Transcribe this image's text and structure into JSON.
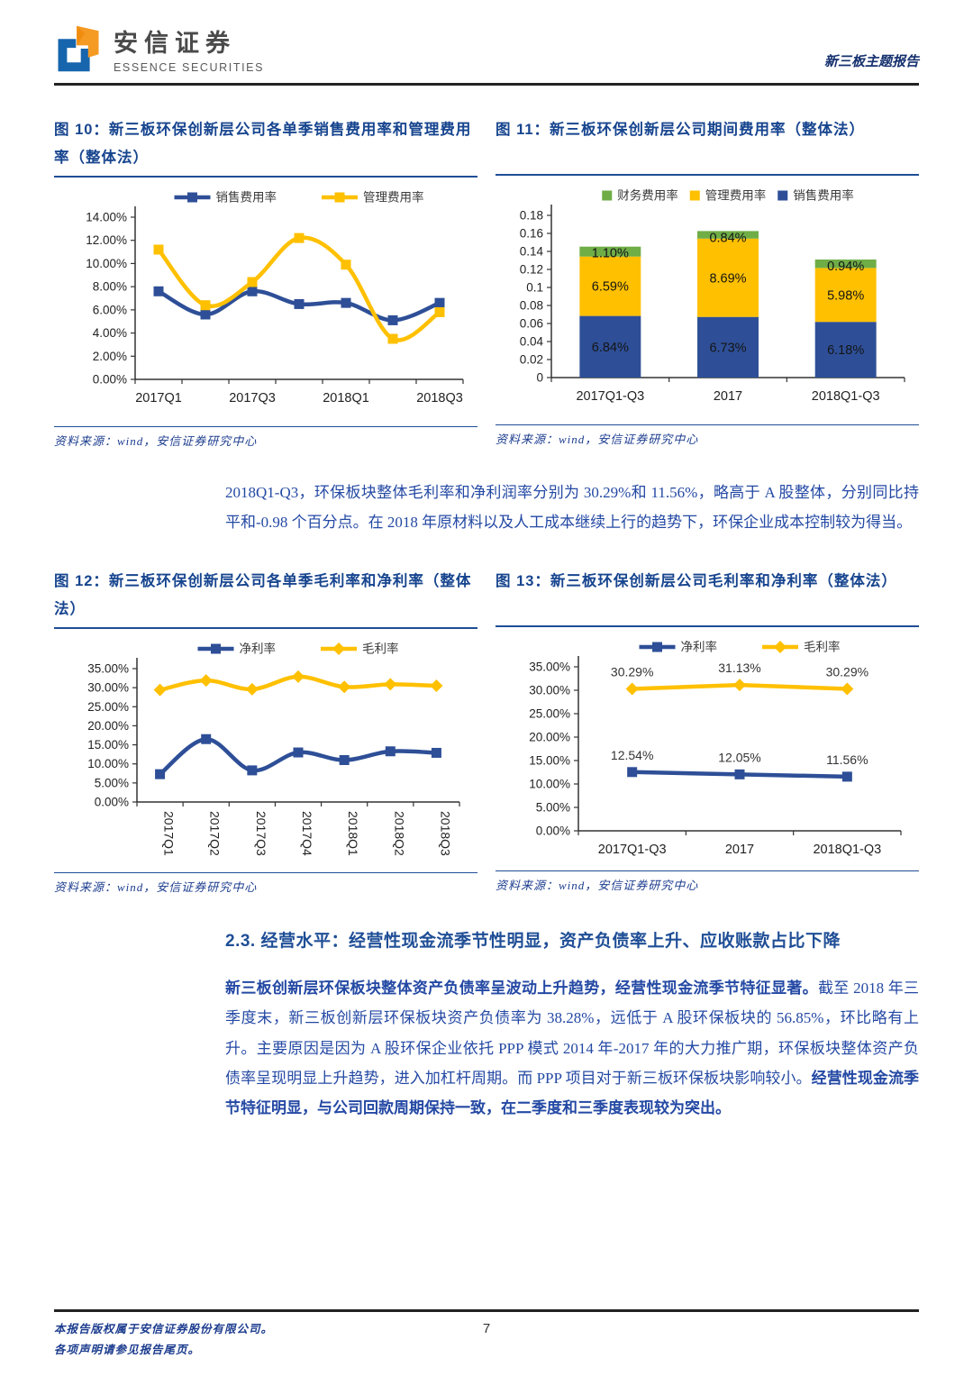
{
  "header": {
    "brand_cn": "安信证券",
    "brand_en": "ESSENCE SECURITIES",
    "report_type": "新三板主题报告"
  },
  "figures": [
    {
      "title": "图 10：新三板环保创新层公司各单季销售费用率和管理费用率（整体法）",
      "source": "资料来源：wind，安信证券研究中心",
      "chart_data": {
        "type": "line",
        "categories": [
          "2017Q1",
          "2017Q2",
          "2017Q3",
          "2017Q4",
          "2018Q1",
          "2018Q2",
          "2018Q3"
        ],
        "xtick_indices": [
          0,
          2,
          4,
          6
        ],
        "series": [
          {
            "name": "销售费用率",
            "color": "#2e4f97",
            "marker": "square",
            "values": [
              7.6,
              5.6,
              7.6,
              6.5,
              6.6,
              5.1,
              6.6
            ]
          },
          {
            "name": "管理费用率",
            "color": "#ffc000",
            "marker": "square",
            "values": [
              11.2,
              6.4,
              8.4,
              12.2,
              9.9,
              3.5,
              5.8
            ]
          }
        ],
        "ylim": [
          0,
          14
        ],
        "ystep": 2,
        "ytick_format": "percent2",
        "smooth": true,
        "legend_style": "line",
        "grid": false,
        "legend_position": "top"
      }
    },
    {
      "title": "图 11：新三板环保创新层公司期间费用率（整体法）",
      "source": "资料来源：wind，安信证券研究中心",
      "chart_data": {
        "type": "stacked-bar",
        "categories": [
          "2017Q1-Q3",
          "2017",
          "2018Q1-Q3"
        ],
        "series": [
          {
            "name": "销售费用率",
            "color": "#2e4f97",
            "values": [
              0.0684,
              0.0673,
              0.0618
            ],
            "labels": [
              "6.84%",
              "6.73%",
              "6.18%"
            ]
          },
          {
            "name": "管理费用率",
            "color": "#ffc000",
            "values": [
              0.0659,
              0.0869,
              0.0598
            ],
            "labels": [
              "6.59%",
              "8.69%",
              "5.98%"
            ]
          },
          {
            "name": "财务费用率",
            "color": "#6fad47",
            "values": [
              0.011,
              0.0084,
              0.0094
            ],
            "labels": [
              "1.10%",
              "0.84%",
              "0.94%"
            ]
          }
        ],
        "legend_order": [
          2,
          1,
          0
        ],
        "ylim": [
          0,
          0.18
        ],
        "ystep": 0.02,
        "ytick_format": "number",
        "legend_style": "square",
        "grid": false,
        "legend_position": "top"
      }
    },
    {
      "title": "图 12：新三板环保创新层公司各单季毛利率和净利率（整体法）",
      "source": "资料来源：wind，安信证券研究中心",
      "chart_data": {
        "type": "line",
        "categories": [
          "2017Q1",
          "2017Q2",
          "2017Q3",
          "2017Q4",
          "2018Q1",
          "2018Q2",
          "2018Q3"
        ],
        "rotate_xlabels": true,
        "series": [
          {
            "name": "净利率",
            "color": "#2e4f97",
            "marker": "square",
            "values": [
              7.3,
              16.5,
              8.3,
              13.0,
              11.0,
              13.3,
              12.9
            ]
          },
          {
            "name": "毛利率",
            "color": "#ffc000",
            "marker": "diamond",
            "values": [
              29.4,
              31.9,
              29.6,
              32.9,
              30.2,
              30.9,
              30.5
            ]
          }
        ],
        "ylim": [
          0,
          35
        ],
        "ystep": 5,
        "ytick_format": "percent2",
        "smooth": true,
        "legend_style": "line",
        "grid": false,
        "legend_position": "top"
      }
    },
    {
      "title": "图 13：新三板环保创新层公司毛利率和净利率（整体法）",
      "source": "资料来源：wind，安信证券研究中心",
      "chart_data": {
        "type": "line",
        "categories": [
          "2017Q1-Q3",
          "2017",
          "2018Q1-Q3"
        ],
        "series": [
          {
            "name": "净利率",
            "color": "#2e4f97",
            "marker": "square",
            "values": [
              12.54,
              12.05,
              11.56
            ],
            "labels": [
              "12.54%",
              "12.05%",
              "11.56%"
            ]
          },
          {
            "name": "毛利率",
            "color": "#ffc000",
            "marker": "diamond",
            "values": [
              30.29,
              31.13,
              30.29
            ],
            "labels": [
              "30.29%",
              "31.13%",
              "30.29%"
            ]
          }
        ],
        "ylim": [
          0,
          35
        ],
        "ystep": 5,
        "ytick_format": "percent2",
        "smooth": false,
        "legend_style": "line",
        "grid": false,
        "legend_position": "top"
      }
    }
  ],
  "paragraphs": {
    "p1": "2018Q1-Q3，环保板块整体毛利率和净利润率分别为 30.29%和 11.56%，略高于 A 股整体，分别同比持平和-0.98 个百分点。在 2018 年原材料以及人工成本继续上行的趋势下，环保企业成本控制较为得当。",
    "p2_bold1": "新三板创新层环保板块整体资产负债率呈波动上升趋势，经营性现金流季节特征显著。",
    "p2_normal": "截至 2018 年三季度末，新三板创新层环保板块资产负债率为 38.28%，远低于 A 股环保板块的 56.85%，环比略有上升。主要原因是因为 A 股环保企业依托 PPP 模式 2014 年-2017 年的大力推广期，环保板块整体资产负债率呈现明显上升趋势，进入加杠杆周期。而 PPP 项目对于新三板环保板块影响较小。",
    "p2_bold2": "经营性现金流季节特征明显，与公司回款周期保持一致，在二季度和三季度表现较为突出。"
  },
  "section_heading": "2.3. 经营水平：经营性现金流季节性明显，资产负债率上升、应收账款占比下降",
  "footer": {
    "line1": "本报告版权属于安信证券股份有限公司。",
    "line2": "各项声明请参见报告尾页。",
    "page_number": "7"
  }
}
